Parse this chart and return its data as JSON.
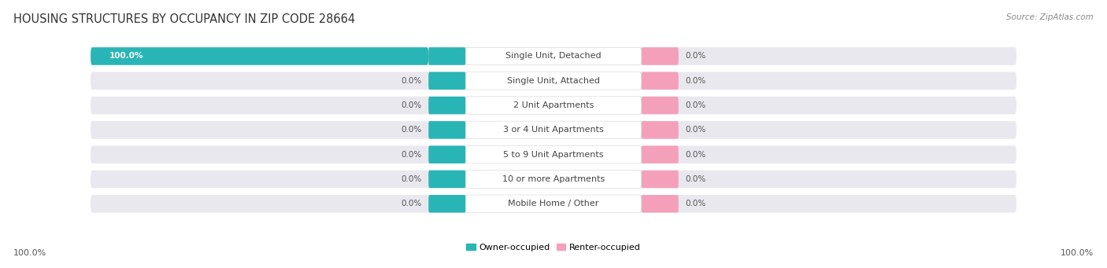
{
  "title": "HOUSING STRUCTURES BY OCCUPANCY IN ZIP CODE 28664",
  "source": "Source: ZipAtlas.com",
  "categories": [
    "Single Unit, Detached",
    "Single Unit, Attached",
    "2 Unit Apartments",
    "3 or 4 Unit Apartments",
    "5 to 9 Unit Apartments",
    "10 or more Apartments",
    "Mobile Home / Other"
  ],
  "owner_values": [
    100.0,
    0.0,
    0.0,
    0.0,
    0.0,
    0.0,
    0.0
  ],
  "renter_values": [
    0.0,
    0.0,
    0.0,
    0.0,
    0.0,
    0.0,
    0.0
  ],
  "owner_color": "#29B5B5",
  "renter_color": "#F5A0BB",
  "bar_bg_color": "#E8E8EE",
  "background_color": "#ffffff",
  "title_fontsize": 10.5,
  "category_fontsize": 8,
  "value_fontsize": 7.5,
  "axis_label_fontsize": 8,
  "owner_label": "Owner-occupied",
  "renter_label": "Renter-occupied",
  "axis_left_label": "100.0%",
  "axis_right_label": "100.0%"
}
